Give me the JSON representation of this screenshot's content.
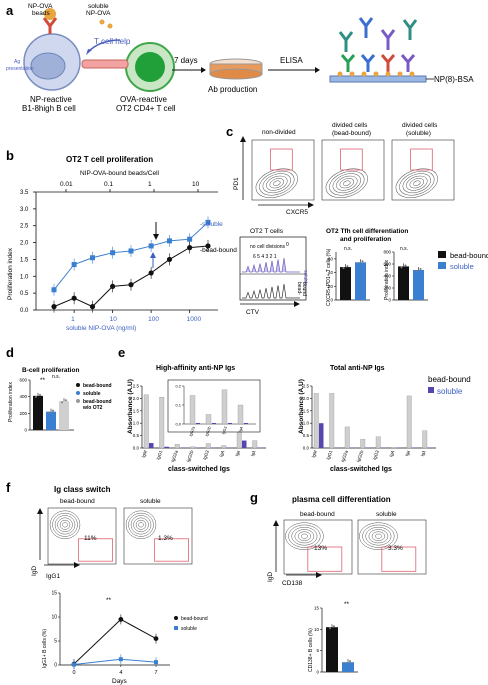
{
  "panel_a": {
    "letter": "a",
    "beads_label_1": "NP-OVA",
    "beads_label_2": "beads",
    "soluble_label_1": "soluble",
    "soluble_label_2": "NP-OVA",
    "t_cell_help": "T cell help",
    "ag_presentation_1": "Ag",
    "ag_presentation_2": "presentation",
    "b_cell_1": "NP-reactive",
    "b_cell_2": "B1-8high B cell",
    "t_cell_1": "OVA-reactive",
    "t_cell_2": "OT2 CD4+ T cell",
    "days": "7 days",
    "ab_production": "Ab production",
    "elisa": "ELISA",
    "np_bsa": "NP(8)-BSA"
  },
  "panel_b": {
    "letter": "b",
    "title": "OT2 T cell proliferation",
    "top_axis_label": "NIP-OVA-bound beads/Cell",
    "bottom_axis_label": "soluble NIP-OVA (ng/ml)",
    "ylabel": "Proliferation index",
    "soluble_legend": "-soluble",
    "bead_legend": "-bead-bound",
    "top_ticks": [
      "0.01",
      "0.1",
      "1",
      "10"
    ],
    "bottom_ticks": [
      "1",
      "10",
      "100",
      "1000"
    ],
    "y_ticks": [
      "0.0",
      "0.5",
      "1.0",
      "1.5",
      "2.0",
      "2.5",
      "3.0",
      "3.5"
    ]
  },
  "panel_c": {
    "letter": "c",
    "col_nondivided": "non-divided",
    "col_bead_1": "divided cells",
    "col_bead_2": "(bead-bound)",
    "col_sol_1": "divided cells",
    "col_sol_2": "(soluble)",
    "y_axis": "PD1",
    "x_axis": "CXCR5",
    "hist_title": "OT2 T cells",
    "hist_note": "no cell divisions",
    "hist_peaks": "6 5 4 3 2 1",
    "hist_zero": "0",
    "hist_soluble": "soluble",
    "hist_bead_1": "bead-",
    "hist_bead_2": "bound",
    "hist_xlabel": "CTV",
    "bar_title_1": "OT2 Tfh cell differentiation",
    "bar_title_2": "and proliferation",
    "bar1_ylabel": "CXCR5+PD1+ T cells (%)",
    "bar2_ylabel": "Proliferation index",
    "ns": "n.s.",
    "legend_bead": "bead-bound",
    "legend_soluble": "soluble"
  },
  "panel_d": {
    "letter": "d",
    "title": "B-cell proliferation",
    "ylabel": "Proliferation index",
    "sig": "**",
    "ns": "n.s.",
    "legend_bead": "bead-bound",
    "legend_soluble": "soluble",
    "legend_wo_1": "bead-bound",
    "legend_wo_2": "w/o OT2",
    "y_ticks": [
      "0",
      "200",
      "400",
      "600"
    ]
  },
  "panel_e": {
    "letter": "e",
    "title_left": "High-affinity anti-NP Igs",
    "title_right": "Total anti-NP Igs",
    "ylabel": "Absorbance (A.U)",
    "xlabel": "class-switched Igs",
    "legend_bead": "bead-bound",
    "legend_soluble": "soluble",
    "isotypes": [
      "IgM",
      "IgG1",
      "IgG2a",
      "IgG2b",
      "IgG3",
      "IgA",
      "Igκ",
      "Igλ"
    ],
    "inset_isotypes": [
      "IgG2a",
      "IgG2b",
      "IgG3",
      "IgA"
    ],
    "y_ticks": [
      "0.0",
      "0.5",
      "1.0",
      "1.5",
      "2.0",
      "2.5"
    ],
    "inset_ticks": [
      "0.0",
      "0.1",
      "0.2"
    ]
  },
  "panel_f": {
    "letter": "f",
    "title": "Ig class switch",
    "col_bead": "bead-bound",
    "col_soluble": "soluble",
    "pct_bead": "11%",
    "pct_soluble": "1.3%",
    "y_axis": "IgD",
    "x_axis": "IgG1",
    "line_ylabel": "IgG1+ B cells (%)",
    "line_xlabel": "Days",
    "sig": "**",
    "legend_bead": "bead-bound",
    "legend_soluble": "soluble",
    "x_ticks": [
      "0",
      "4",
      "7"
    ],
    "y_ticks": [
      "0",
      "5",
      "10",
      "15"
    ]
  },
  "panel_g": {
    "letter": "g",
    "title": "plasma cell differentiation",
    "col_bead": "bead-bound",
    "col_soluble": "soluble",
    "pct_bead": "13%",
    "pct_soluble": "3.3%",
    "y_axis": "IgD",
    "x_axis": "CD138",
    "bar_ylabel": "CD138+ B cells (%)",
    "sig": "**",
    "y_ticks": [
      "0",
      "5",
      "10",
      "15"
    ]
  },
  "colors": {
    "bead": "#111111",
    "soluble": "#3a7fd0",
    "purple": "#5546b0",
    "grey_bar": "#cfcfcf",
    "gate": "#e06070"
  },
  "chart_data": [
    {
      "id": "b",
      "type": "line",
      "title": "OT2 T cell proliferation",
      "xlabel": "soluble NIP-OVA (ng/ml)",
      "x2label": "NIP-OVA-bound beads/Cell",
      "ylabel": "Proliferation index",
      "xscale": "log",
      "ylim": [
        0,
        3.5
      ],
      "series": [
        {
          "name": "soluble",
          "x": [
            0.3,
            1,
            3,
            10,
            30,
            100,
            300,
            1000,
            3000
          ],
          "y": [
            0.6,
            1.35,
            1.55,
            1.7,
            1.75,
            1.9,
            2.05,
            2.1,
            2.6
          ]
        },
        {
          "name": "bead-bound",
          "x": [
            0.3,
            1,
            3,
            10,
            30,
            100,
            300,
            1000,
            3000
          ],
          "y": [
            0.1,
            0.35,
            0.1,
            0.7,
            0.75,
            1.1,
            1.5,
            1.85,
            1.9
          ]
        }
      ]
    },
    {
      "id": "c-left",
      "type": "bar",
      "ylabel": "CXCR5+PD1+ T cells (%)",
      "categories": [
        "bead-bound",
        "soluble"
      ],
      "values": [
        48,
        55
      ],
      "ylim": [
        0,
        70
      ]
    },
    {
      "id": "c-right",
      "type": "bar",
      "ylabel": "Proliferation index",
      "categories": [
        "bead-bound",
        "soluble"
      ],
      "values": [
        560,
        500
      ],
      "ylim": [
        0,
        800
      ]
    },
    {
      "id": "d",
      "type": "bar",
      "title": "B-cell proliferation",
      "ylabel": "Proliferation index",
      "categories": [
        "bead-bound",
        "soluble",
        "bead-bound w/o OT2"
      ],
      "values": [
        410,
        220,
        345
      ],
      "ylim": [
        0,
        600
      ]
    },
    {
      "id": "e-left",
      "type": "bar",
      "title": "High-affinity anti-NP Igs",
      "ylabel": "Absorbance (A.U)",
      "categories": [
        "IgM",
        "IgG1",
        "IgG2a",
        "IgG2b",
        "IgG3",
        "IgA",
        "Igκ",
        "Igλ"
      ],
      "series": [
        {
          "name": "bead-bound",
          "values": [
            2.15,
            2.05,
            0.15,
            0.05,
            0.18,
            0.1,
            2.2,
            0.3
          ]
        },
        {
          "name": "soluble",
          "values": [
            0.2,
            0.05,
            0.02,
            0.02,
            0.02,
            0.02,
            0.3,
            0.02
          ]
        }
      ],
      "ylim": [
        0,
        2.5
      ]
    },
    {
      "id": "e-right",
      "type": "bar",
      "title": "Total anti-NP Igs",
      "ylabel": "Absorbance (A.U)",
      "categories": [
        "IgM",
        "IgG1",
        "IgG2a",
        "IgG2b",
        "IgG3",
        "IgA",
        "Igκ",
        "Igλ"
      ],
      "series": [
        {
          "name": "bead-bound",
          "values": [
            2.2,
            2.2,
            0.85,
            0.35,
            0.45,
            0.02,
            2.1,
            0.7
          ]
        },
        {
          "name": "soluble",
          "values": [
            1.0,
            0.02,
            0.02,
            0.02,
            0.02,
            0.02,
            0.02,
            0.02
          ]
        }
      ],
      "ylim": [
        0,
        2.5
      ]
    },
    {
      "id": "f",
      "type": "line",
      "xlabel": "Days",
      "ylabel": "IgG1+ B cells (%)",
      "ylim": [
        0,
        15
      ],
      "series": [
        {
          "name": "bead-bound",
          "x": [
            0,
            4,
            7
          ],
          "y": [
            0.2,
            9.5,
            5.5
          ]
        },
        {
          "name": "soluble",
          "x": [
            0,
            4,
            7
          ],
          "y": [
            0.1,
            1.2,
            0.6
          ]
        }
      ]
    },
    {
      "id": "g",
      "type": "bar",
      "ylabel": "CD138+ B cells (%)",
      "categories": [
        "bead-bound",
        "soluble"
      ],
      "values": [
        10.5,
        2.3
      ],
      "ylim": [
        0,
        15
      ]
    }
  ]
}
